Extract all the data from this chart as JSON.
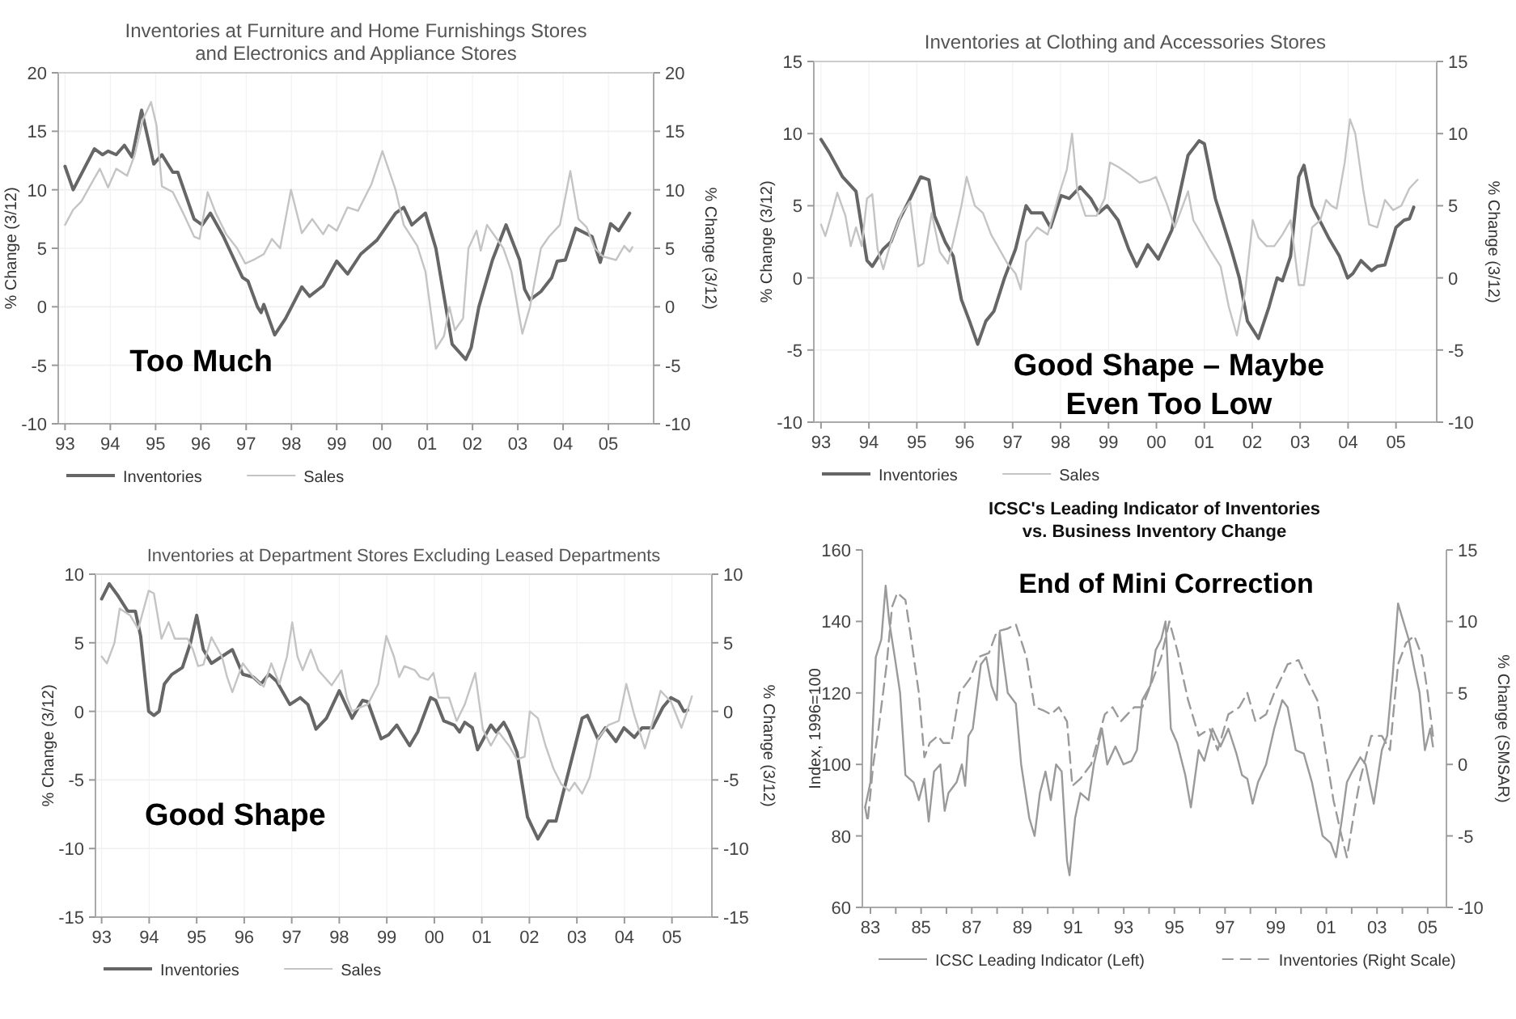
{
  "chart_data": [
    {
      "type": "line",
      "title": "Inventories at Furniture and Home Furnishings Stores\nand Electronics and Appliance Stores",
      "ylabel": "% Change (3/12)",
      "y2label": "% Change (3/12)",
      "xlim": [
        1992.85,
        2006
      ],
      "xticks": [
        {
          "value": 1993,
          "label": "93"
        },
        {
          "value": 1994,
          "label": "94"
        },
        {
          "value": 1995,
          "label": "95"
        },
        {
          "value": 1996,
          "label": "96"
        },
        {
          "value": 1997,
          "label": "97"
        },
        {
          "value": 1998,
          "label": "98"
        },
        {
          "value": 1999,
          "label": "99"
        },
        {
          "value": 2000,
          "label": "00"
        },
        {
          "value": 2001,
          "label": "01"
        },
        {
          "value": 2002,
          "label": "02"
        },
        {
          "value": 2003,
          "label": "03"
        },
        {
          "value": 2004,
          "label": "04"
        },
        {
          "value": 2005,
          "label": "05"
        }
      ],
      "ylim": [
        -10,
        20
      ],
      "yticks": [
        -10,
        -5,
        0,
        5,
        10,
        15,
        20
      ],
      "y2lim": [
        -10,
        20
      ],
      "y2ticks": [
        -10,
        -5,
        0,
        5,
        10,
        15,
        20
      ],
      "grid": true,
      "legend": "bottom",
      "annotations": [
        "Too Much"
      ],
      "series": [
        {
          "name": "Inventories",
          "color": "#666666",
          "x": [
            1993.0,
            1993.18,
            1993.65,
            1993.83,
            1993.95,
            1994.13,
            1994.31,
            1994.48,
            1994.69,
            1994.96,
            1995.14,
            1995.38,
            1995.49,
            1995.67,
            1995.85,
            1996.03,
            1996.21,
            1996.5,
            1996.68,
            1996.92,
            1997.04,
            1997.25,
            1997.33,
            1997.39,
            1997.63,
            1997.87,
            1998.23,
            1998.4,
            1998.7,
            1999.0,
            1999.24,
            1999.53,
            1999.89,
            2000.3,
            2000.48,
            2000.66,
            2000.96,
            2001.19,
            2001.55,
            2001.85,
            2001.97,
            2002.14,
            2002.44,
            2002.74,
            2003.04,
            2003.15,
            2003.27,
            2003.51,
            2003.75,
            2003.87,
            2004.05,
            2004.28,
            2004.64,
            2004.82,
            2005.05,
            2005.23,
            2005.47
          ],
          "values": [
            12,
            10,
            13.5,
            13,
            13.3,
            13,
            13.8,
            12.8,
            16.8,
            12.2,
            13,
            11.5,
            11.5,
            9.5,
            7.5,
            7,
            8,
            6,
            4.5,
            2.5,
            2.2,
            0,
            -0.5,
            0.2,
            -2.4,
            -1,
            1.7,
            0.9,
            1.8,
            3.9,
            2.8,
            4.5,
            5.7,
            8,
            8.5,
            7,
            8,
            5,
            -3.2,
            -4.5,
            -3.5,
            0,
            4,
            7,
            4,
            1.5,
            0.6,
            1.3,
            2.5,
            3.9,
            4,
            6.7,
            6,
            3.8,
            7.1,
            6.5,
            8
          ]
        },
        {
          "name": "Sales",
          "color": "#c4c4c4",
          "x": [
            1993.0,
            1993.18,
            1993.36,
            1993.65,
            1993.77,
            1993.95,
            1994.13,
            1994.37,
            1994.54,
            1994.72,
            1994.9,
            1995.02,
            1995.14,
            1995.38,
            1995.61,
            1995.85,
            1995.97,
            1996.15,
            1996.33,
            1996.56,
            1996.8,
            1996.98,
            1997.16,
            1997.39,
            1997.57,
            1997.75,
            1997.99,
            1998.23,
            1998.46,
            1998.7,
            1998.82,
            1999.0,
            1999.24,
            1999.47,
            1999.77,
            2000.01,
            2000.3,
            2000.48,
            2000.78,
            2000.96,
            2001.19,
            2001.37,
            2001.49,
            2001.61,
            2001.79,
            2001.91,
            2002.09,
            2002.18,
            2002.32,
            2002.5,
            2002.68,
            2002.86,
            2003.1,
            2003.27,
            2003.51,
            2003.69,
            2003.93,
            2004.16,
            2004.34,
            2004.52,
            2004.7,
            2004.88,
            2005.17,
            2005.35,
            2005.47,
            2005.53
          ],
          "values": [
            7,
            8.3,
            9,
            11,
            11.8,
            10.2,
            11.8,
            11.2,
            13,
            16,
            17.5,
            15.5,
            10.3,
            9.8,
            8,
            6,
            5.8,
            9.8,
            8,
            6.2,
            5,
            3.7,
            4,
            4.5,
            5.8,
            5,
            10,
            6.3,
            7.5,
            6.2,
            7,
            6.5,
            8.5,
            8.2,
            10.5,
            13.3,
            10,
            7,
            5.2,
            3,
            -3.6,
            -2.5,
            0,
            -2,
            -1,
            5,
            6.5,
            4.8,
            7,
            6,
            5,
            3,
            -2.3,
            0,
            5,
            6,
            7,
            11.6,
            7.5,
            6.8,
            5,
            4.3,
            4,
            5.2,
            4.7,
            5.1
          ]
        }
      ]
    },
    {
      "type": "line",
      "title": "Inventories at Clothing and Accessories Stores",
      "ylabel": "% Change (3/12)",
      "y2label": "% Change (3/12)",
      "xlim": [
        1992.85,
        2005.85
      ],
      "xticks": [
        {
          "value": 1993,
          "label": "93"
        },
        {
          "value": 1994,
          "label": "94"
        },
        {
          "value": 1995,
          "label": "95"
        },
        {
          "value": 1996,
          "label": "96"
        },
        {
          "value": 1997,
          "label": "97"
        },
        {
          "value": 1998,
          "label": "98"
        },
        {
          "value": 1999,
          "label": "99"
        },
        {
          "value": 2000,
          "label": "00"
        },
        {
          "value": 2001,
          "label": "01"
        },
        {
          "value": 2002,
          "label": "02"
        },
        {
          "value": 2003,
          "label": "03"
        },
        {
          "value": 2004,
          "label": "04"
        },
        {
          "value": 2005,
          "label": "05"
        }
      ],
      "ylim": [
        -10,
        15
      ],
      "yticks": [
        -10,
        -5,
        0,
        5,
        10,
        15
      ],
      "y2lim": [
        -10,
        15
      ],
      "y2ticks": [
        -10,
        -5,
        0,
        5,
        10,
        15
      ],
      "grid": true,
      "legend": "bottom",
      "annotations": [
        "Good Shape – Maybe\nEven Too Low"
      ],
      "series": [
        {
          "name": "Inventories",
          "color": "#666666",
          "x": [
            1993.0,
            1993.17,
            1993.45,
            1993.73,
            1993.96,
            1994.07,
            1994.3,
            1994.46,
            1994.63,
            1994.86,
            1995.08,
            1995.25,
            1995.37,
            1995.59,
            1995.76,
            1995.93,
            1996.1,
            1996.27,
            1996.44,
            1996.61,
            1996.83,
            1997.06,
            1997.28,
            1997.39,
            1997.62,
            1997.79,
            1998.01,
            1998.18,
            1998.41,
            1998.63,
            1998.8,
            1998.97,
            1999.2,
            1999.42,
            1999.59,
            1999.82,
            2000.04,
            2000.32,
            2000.66,
            2000.89,
            2001.0,
            2001.23,
            2001.56,
            2001.73,
            2001.9,
            2002.13,
            2002.35,
            2002.52,
            2002.63,
            2002.8,
            2002.97,
            2003.08,
            2003.25,
            2003.59,
            2003.82,
            2003.99,
            2004.1,
            2004.27,
            2004.49,
            2004.61,
            2004.77,
            2005.0,
            2005.17,
            2005.28,
            2005.37
          ],
          "values": [
            9.6,
            8.7,
            7,
            6,
            1.2,
            0.8,
            2,
            2.5,
            4,
            5.5,
            7,
            6.8,
            4.3,
            2.5,
            1.5,
            -1.5,
            -3,
            -4.6,
            -3,
            -2.3,
            0,
            2,
            5,
            4.5,
            4.5,
            3.5,
            5.7,
            5.5,
            6.3,
            5.5,
            4.5,
            5,
            4,
            2,
            0.8,
            2.3,
            1.3,
            3.3,
            8.5,
            9.5,
            9.3,
            5.5,
            2,
            0,
            -3,
            -4.2,
            -2,
            0,
            -0.2,
            1.5,
            7,
            7.8,
            5,
            2.8,
            1.5,
            0,
            0.3,
            1.2,
            0.5,
            0.8,
            0.9,
            3.5,
            4,
            4.1,
            4.9
          ]
        },
        {
          "name": "Sales",
          "color": "#c4c4c4",
          "x": [
            1993.0,
            1993.09,
            1993.23,
            1993.34,
            1993.51,
            1993.62,
            1993.73,
            1993.85,
            1993.96,
            1994.07,
            1994.18,
            1994.3,
            1994.46,
            1994.69,
            1994.86,
            1995.03,
            1995.14,
            1995.31,
            1995.48,
            1995.65,
            1995.76,
            1995.93,
            1996.04,
            1996.21,
            1996.38,
            1996.55,
            1996.72,
            1996.89,
            1997.06,
            1997.17,
            1997.28,
            1997.51,
            1997.73,
            1997.96,
            1998.13,
            1998.24,
            1998.35,
            1998.52,
            1998.75,
            1998.92,
            1999.03,
            1999.2,
            1999.42,
            1999.65,
            1999.87,
            1999.99,
            2000.21,
            2000.38,
            2000.55,
            2000.66,
            2000.77,
            2000.89,
            2001.11,
            2001.34,
            2001.51,
            2001.68,
            2001.85,
            2002.01,
            2002.13,
            2002.3,
            2002.46,
            2002.63,
            2002.8,
            2002.97,
            2003.08,
            2003.25,
            2003.42,
            2003.54,
            2003.65,
            2003.76,
            2003.93,
            2004.04,
            2004.15,
            2004.32,
            2004.44,
            2004.61,
            2004.77,
            2004.94,
            2005.11,
            2005.28,
            2005.45
          ],
          "values": [
            3.7,
            2.9,
            4.5,
            5.9,
            4.3,
            2.2,
            3.5,
            2.2,
            5.5,
            5.8,
            2,
            0.6,
            2.5,
            4.5,
            5.3,
            0.8,
            1,
            4.5,
            1.8,
            1,
            2.5,
            5,
            7,
            5,
            4.5,
            3,
            2,
            1,
            0.3,
            -0.8,
            2.5,
            3.5,
            3,
            5.7,
            7.5,
            10,
            6,
            4.3,
            4.3,
            5.5,
            8,
            7.7,
            7.2,
            6.6,
            6.8,
            7,
            5.2,
            3.5,
            5,
            6,
            4,
            3.3,
            2,
            0.8,
            -2,
            -4,
            -1,
            4,
            2.8,
            2.2,
            2.2,
            3,
            4,
            -0.5,
            -0.5,
            3.5,
            4,
            5.4,
            5,
            4.8,
            8,
            11,
            10,
            6,
            3.7,
            3.5,
            5.4,
            4.7,
            5,
            6.2,
            6.8
          ]
        }
      ]
    },
    {
      "type": "line",
      "title": "Inventories at Department Stores Excluding Leased Departments",
      "ylabel": "% Change (3/12)",
      "y2label": "% Change (3/12)",
      "xlim": [
        1992.87,
        2005.84
      ],
      "xticks": [
        {
          "value": 1993,
          "label": "93"
        },
        {
          "value": 1994,
          "label": "94"
        },
        {
          "value": 1995,
          "label": "95"
        },
        {
          "value": 1996,
          "label": "96"
        },
        {
          "value": 1997,
          "label": "97"
        },
        {
          "value": 1998,
          "label": "98"
        },
        {
          "value": 1999,
          "label": "99"
        },
        {
          "value": 2000,
          "label": "00"
        },
        {
          "value": 2001,
          "label": "01"
        },
        {
          "value": 2002,
          "label": "02"
        },
        {
          "value": 2003,
          "label": "03"
        },
        {
          "value": 2004,
          "label": "04"
        },
        {
          "value": 2005,
          "label": "05"
        }
      ],
      "ylim": [
        -15,
        10
      ],
      "yticks": [
        -15,
        -10,
        -5,
        0,
        5,
        10
      ],
      "y2lim": [
        -15,
        10
      ],
      "y2ticks": [
        -15,
        -10,
        -5,
        0,
        5,
        10
      ],
      "grid": true,
      "legend": "bottom",
      "annotations": [
        "Good Shape"
      ],
      "series": [
        {
          "name": "Inventories",
          "color": "#666666",
          "x": [
            1993.0,
            1993.16,
            1993.33,
            1993.55,
            1993.71,
            1993.82,
            1993.99,
            1994.1,
            1994.21,
            1994.32,
            1994.48,
            1994.7,
            1994.87,
            1995.0,
            1995.14,
            1995.31,
            1995.53,
            1995.75,
            1995.97,
            1996.19,
            1996.35,
            1996.52,
            1996.68,
            1996.96,
            1997.18,
            1997.34,
            1997.51,
            1997.73,
            1998.0,
            1998.27,
            1998.49,
            1998.6,
            1998.88,
            1999.04,
            1999.21,
            1999.48,
            1999.65,
            1999.92,
            2000.03,
            2000.2,
            2000.42,
            2000.53,
            2000.64,
            2000.8,
            2000.91,
            2001.19,
            2001.3,
            2001.46,
            2001.57,
            2001.74,
            2001.96,
            2002.18,
            2002.4,
            2002.56,
            2002.78,
            2002.89,
            2003.11,
            2003.22,
            2003.44,
            2003.6,
            2003.82,
            2003.99,
            2004.21,
            2004.37,
            2004.59,
            2004.81,
            2004.98,
            2005.14,
            2005.25,
            2005.33
          ],
          "values": [
            8.2,
            9.3,
            8.5,
            7.3,
            7.3,
            5.5,
            0,
            -0.3,
            0,
            2,
            2.7,
            3.2,
            5,
            7,
            4.5,
            3.5,
            4,
            4.5,
            2.7,
            2.5,
            2,
            2.7,
            2.2,
            0.5,
            1,
            0.5,
            -1.3,
            -0.5,
            1.5,
            -0.5,
            0.8,
            0.7,
            -2,
            -1.7,
            -1,
            -2.5,
            -1.5,
            1,
            0.8,
            -0.7,
            -1,
            -1.5,
            -0.8,
            -1.2,
            -2.8,
            -1,
            -1.5,
            -0.8,
            -1.5,
            -3,
            -7.7,
            -9.3,
            -8,
            -8,
            -5,
            -3.5,
            -0.5,
            -0.3,
            -2,
            -1.2,
            -2.2,
            -1.2,
            -1.9,
            -1.2,
            -1.2,
            0.3,
            1,
            0.7,
            0,
            0.1
          ]
        },
        {
          "name": "Sales",
          "color": "#c4c4c4",
          "x": [
            1993.0,
            1993.11,
            1993.27,
            1993.38,
            1993.6,
            1993.77,
            1993.99,
            1994.1,
            1994.26,
            1994.41,
            1994.54,
            1994.81,
            1994.92,
            1995.03,
            1995.14,
            1995.31,
            1995.53,
            1995.64,
            1995.75,
            1995.97,
            1996.19,
            1996.41,
            1996.57,
            1996.74,
            1996.9,
            1997.01,
            1997.12,
            1997.23,
            1997.4,
            1997.56,
            1997.84,
            1998.05,
            1998.16,
            1998.27,
            1998.44,
            1998.6,
            1998.82,
            1998.99,
            1999.15,
            1999.26,
            1999.37,
            1999.59,
            1999.7,
            1999.87,
            1999.98,
            2000.09,
            2000.31,
            2000.47,
            2000.64,
            2000.86,
            2001.02,
            2001.19,
            2001.35,
            2001.57,
            2001.74,
            2001.9,
            2002.01,
            2002.18,
            2002.34,
            2002.51,
            2002.67,
            2002.84,
            2002.95,
            2003.11,
            2003.27,
            2003.44,
            2003.66,
            2003.88,
            2004.04,
            2004.21,
            2004.43,
            2004.59,
            2004.76,
            2004.98,
            2005.2,
            2005.31,
            2005.42
          ],
          "values": [
            4,
            3.5,
            5,
            7.5,
            7,
            6,
            8.8,
            8.6,
            5.3,
            6.5,
            5.3,
            5.3,
            4.5,
            3.3,
            3.4,
            5.4,
            4,
            2.5,
            1.4,
            3.5,
            2.5,
            1.8,
            3.5,
            2,
            4,
            6.5,
            4,
            3,
            4.5,
            3,
            1.9,
            3,
            1,
            0,
            0.3,
            0.5,
            2,
            5.5,
            4,
            2.5,
            3.3,
            3,
            2.5,
            2.3,
            2.8,
            1,
            1,
            -0.7,
            0.5,
            2.8,
            -1.3,
            -2.5,
            -1.5,
            -2.5,
            -3.5,
            -3.3,
            0,
            -0.5,
            -2.5,
            -4.2,
            -5.3,
            -5.8,
            -5.2,
            -6,
            -4.8,
            -2,
            -1,
            -0.7,
            2,
            -0.3,
            -2.7,
            -0.8,
            1.5,
            0.7,
            -1.2,
            -0.1,
            1.1
          ]
        }
      ]
    },
    {
      "type": "line",
      "title": "ICSC's Leading Indicator of Inventories\nvs. Business Inventory Change",
      "ylabel": "Index, 1996=100",
      "y2label": "% Change (SMSAR)",
      "xlim": [
        1982.68,
        2005.74
      ],
      "xticks": [
        {
          "value": 1983,
          "label": "83"
        },
        {
          "value": 1984,
          "label": null
        },
        {
          "value": 1985,
          "label": "85"
        },
        {
          "value": 1986,
          "label": null
        },
        {
          "value": 1987,
          "label": "87"
        },
        {
          "value": 1988,
          "label": null
        },
        {
          "value": 1989,
          "label": "89"
        },
        {
          "value": 1990,
          "label": null
        },
        {
          "value": 1991,
          "label": "91"
        },
        {
          "value": 1992,
          "label": null
        },
        {
          "value": 1993,
          "label": "93"
        },
        {
          "value": 1994,
          "label": null
        },
        {
          "value": 1995,
          "label": "95"
        },
        {
          "value": 1996,
          "label": null
        },
        {
          "value": 1997,
          "label": "97"
        },
        {
          "value": 1998,
          "label": null
        },
        {
          "value": 1999,
          "label": "99"
        },
        {
          "value": 2000,
          "label": null
        },
        {
          "value": 2001,
          "label": "01"
        },
        {
          "value": 2002,
          "label": null
        },
        {
          "value": 2003,
          "label": "03"
        },
        {
          "value": 2004,
          "label": null
        },
        {
          "value": 2005,
          "label": "05"
        }
      ],
      "ylim": [
        60,
        160
      ],
      "yticks": [
        60,
        80,
        100,
        120,
        140,
        160
      ],
      "y2lim": [
        -10,
        15
      ],
      "y2ticks": [
        -10,
        -5,
        0,
        5,
        10,
        15
      ],
      "legend": "bottom",
      "annotations": [
        "End of Mini Correction"
      ],
      "series": [
        {
          "name": "ICSC Leading Indicator (Left)",
          "color": "#9a9a9a",
          "line_style": "solid",
          "x": [
            1982.79,
            1983.0,
            1983.21,
            1983.43,
            1983.6,
            1983.74,
            1983.96,
            1984.17,
            1984.38,
            1984.7,
            1984.91,
            1985.13,
            1985.3,
            1985.51,
            1985.76,
            1985.93,
            1986.08,
            1986.4,
            1986.61,
            1986.74,
            1986.87,
            1987.04,
            1987.36,
            1987.57,
            1987.78,
            1987.99,
            1988.1,
            1988.42,
            1988.74,
            1988.95,
            1989.27,
            1989.48,
            1989.69,
            1989.91,
            1990.12,
            1990.33,
            1990.55,
            1990.76,
            1990.86,
            1991.08,
            1991.29,
            1991.61,
            1991.82,
            1992.14,
            1992.35,
            1992.67,
            1992.99,
            1993.31,
            1993.52,
            1993.73,
            1994.05,
            1994.26,
            1994.48,
            1994.65,
            1994.86,
            1995.11,
            1995.43,
            1995.65,
            1995.96,
            1996.18,
            1996.5,
            1996.82,
            1997.13,
            1997.45,
            1997.67,
            1997.88,
            1998.09,
            1998.3,
            1998.62,
            1998.94,
            1999.26,
            1999.47,
            1999.79,
            2000.11,
            2000.43,
            2000.85,
            2001.17,
            2001.38,
            2001.6,
            2001.81,
            2002.02,
            2002.34,
            2002.55,
            2002.87,
            2003.19,
            2003.4,
            2003.62,
            2003.83,
            2004.04,
            2004.25,
            2004.47,
            2004.68,
            2004.89,
            2005.1,
            2005.21
          ],
          "values": [
            88,
            95,
            130,
            135,
            150,
            140,
            130,
            120,
            97,
            95,
            90,
            96,
            84,
            98,
            100,
            87,
            92,
            95,
            100,
            94,
            108,
            110,
            128,
            130,
            122,
            118,
            137,
            120,
            117,
            100,
            85,
            80,
            92,
            98,
            90,
            100,
            98,
            73,
            69,
            85,
            92,
            90,
            100,
            110,
            100,
            105,
            100,
            101,
            104,
            118,
            122,
            132,
            135,
            140,
            110,
            106,
            97,
            88,
            104,
            101,
            110,
            105,
            110,
            103,
            97,
            96,
            89,
            95,
            100,
            110,
            118,
            116,
            104,
            103,
            95,
            80,
            78,
            74,
            84,
            95,
            98,
            102,
            100,
            89,
            104,
            108,
            125,
            145,
            140,
            135,
            127,
            120,
            104,
            110,
            105
          ]
        },
        {
          "name": "Inventories (Right Scale)",
          "color": "#9a9a9a",
          "line_style": "dashed",
          "axis": "y2",
          "x": [
            1982.79,
            1982.89,
            1983.11,
            1983.32,
            1983.64,
            1983.85,
            1984.06,
            1984.38,
            1984.59,
            1984.91,
            1985.13,
            1985.34,
            1985.66,
            1985.87,
            1986.19,
            1986.51,
            1986.93,
            1987.25,
            1987.68,
            1987.99,
            1988.42,
            1988.74,
            1989.16,
            1989.48,
            1989.8,
            1990.12,
            1990.44,
            1990.76,
            1990.97,
            1991.29,
            1991.71,
            1992.25,
            1992.56,
            1992.88,
            1993.41,
            1993.73,
            1994.16,
            1994.48,
            1994.8,
            1995.11,
            1995.54,
            1995.96,
            1996.39,
            1996.71,
            1997.13,
            1997.56,
            1997.88,
            1998.2,
            1998.62,
            1998.94,
            1999.47,
            1999.9,
            2000.22,
            2000.64,
            2000.96,
            2001.28,
            2001.6,
            2001.81,
            2002.13,
            2002.34,
            2002.77,
            2003.19,
            2003.51,
            2003.83,
            2004.15,
            2004.47,
            2004.79,
            2005.0,
            2005.21
          ],
          "values": [
            -3,
            -4,
            0,
            2.5,
            7,
            11,
            12,
            11.5,
            9,
            5,
            0.5,
            1.5,
            2,
            1.5,
            1.5,
            5,
            6,
            7.5,
            7.8,
            9.3,
            9.5,
            9.8,
            7.5,
            4,
            3.8,
            3.5,
            4,
            3,
            -1.5,
            -1,
            0,
            3.5,
            4,
            3,
            4,
            4,
            6,
            7.5,
            10,
            8,
            4.5,
            2,
            2.5,
            1,
            3.5,
            4,
            5,
            3,
            3.5,
            5,
            7,
            7.3,
            6,
            4.5,
            1,
            -2.5,
            -5,
            -6.5,
            -3,
            -1,
            2,
            2,
            1,
            7,
            8.5,
            9,
            7.5,
            5,
            2
          ]
        }
      ]
    }
  ]
}
